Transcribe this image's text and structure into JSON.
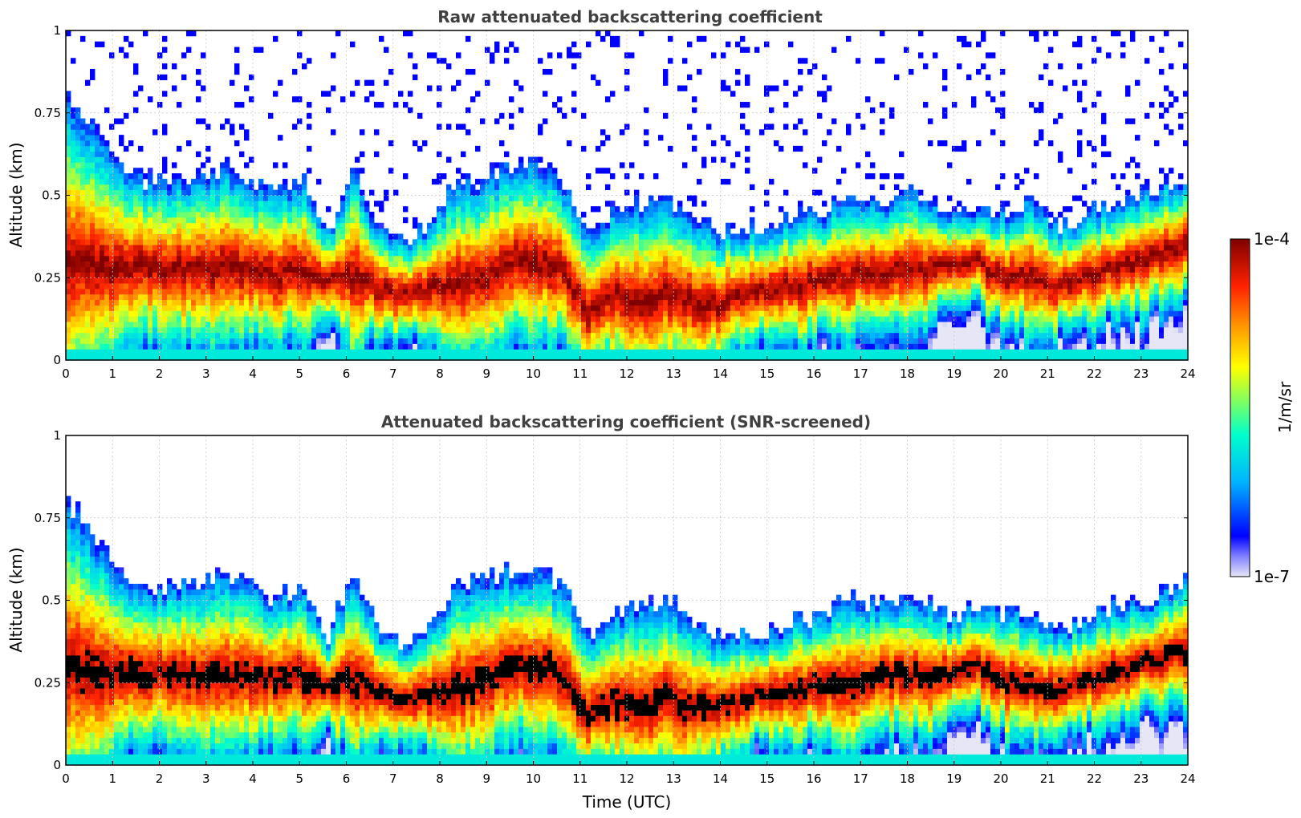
{
  "chart_data": [
    {
      "type": "heatmap",
      "title": "Raw attenuated backscattering coefficient",
      "xlabel": "",
      "ylabel": "Altitude (km)",
      "xlim": [
        0,
        24
      ],
      "ylim": [
        0,
        1
      ],
      "xticks": [
        0,
        1,
        2,
        3,
        4,
        5,
        6,
        7,
        8,
        9,
        10,
        11,
        12,
        13,
        14,
        15,
        16,
        17,
        18,
        19,
        20,
        21,
        22,
        23,
        24
      ],
      "yticks": [
        {
          "value": 0,
          "label": "0"
        },
        {
          "value": 0.25,
          "label": "0.25"
        },
        {
          "value": 0.5,
          "label": "0.5"
        },
        {
          "value": 0.75,
          "label": "0.75"
        },
        {
          "value": 1,
          "label": "1"
        }
      ],
      "grid": true,
      "screened": false,
      "layer_top_km": [
        0.8,
        0.7,
        0.58,
        0.55,
        0.55,
        0.55,
        0.6,
        0.55,
        0.5,
        0.55,
        0.4,
        0.58,
        0.4,
        0.35,
        0.42,
        0.55,
        0.55,
        0.6,
        0.6,
        0.55,
        0.4,
        0.45,
        0.48,
        0.5,
        0.45,
        0.4,
        0.4,
        0.4,
        0.45,
        0.45,
        0.5,
        0.5,
        0.5,
        0.5,
        0.45,
        0.48,
        0.45,
        0.48,
        0.4,
        0.45,
        0.48,
        0.5,
        0.52,
        0.55
      ],
      "layer_center_km": [
        0.3,
        0.28,
        0.28,
        0.28,
        0.28,
        0.27,
        0.28,
        0.27,
        0.26,
        0.27,
        0.24,
        0.26,
        0.22,
        0.2,
        0.22,
        0.23,
        0.25,
        0.3,
        0.3,
        0.28,
        0.15,
        0.2,
        0.18,
        0.2,
        0.18,
        0.17,
        0.2,
        0.22,
        0.22,
        0.25,
        0.25,
        0.27,
        0.27,
        0.27,
        0.28,
        0.3,
        0.25,
        0.25,
        0.22,
        0.25,
        0.28,
        0.3,
        0.32,
        0.35
      ]
    },
    {
      "type": "heatmap",
      "title": "Attenuated backscattering coefficient (SNR-screened)",
      "xlabel": "Time (UTC)",
      "ylabel": "Altitude (km)",
      "xlim": [
        0,
        24
      ],
      "ylim": [
        0,
        1
      ],
      "xticks": [
        0,
        1,
        2,
        3,
        4,
        5,
        6,
        7,
        8,
        9,
        10,
        11,
        12,
        13,
        14,
        15,
        16,
        17,
        18,
        19,
        20,
        21,
        22,
        23,
        24
      ],
      "yticks": [
        {
          "value": 0,
          "label": "0"
        },
        {
          "value": 0.25,
          "label": "0.25"
        },
        {
          "value": 0.5,
          "label": "0.5"
        },
        {
          "value": 0.75,
          "label": "0.75"
        },
        {
          "value": 1,
          "label": "1"
        }
      ],
      "grid": true,
      "screened": true,
      "layer_top_km": [
        0.8,
        0.7,
        0.58,
        0.55,
        0.55,
        0.55,
        0.6,
        0.55,
        0.5,
        0.55,
        0.4,
        0.58,
        0.4,
        0.35,
        0.42,
        0.55,
        0.55,
        0.6,
        0.6,
        0.55,
        0.4,
        0.45,
        0.48,
        0.5,
        0.45,
        0.4,
        0.4,
        0.4,
        0.45,
        0.45,
        0.5,
        0.5,
        0.5,
        0.5,
        0.45,
        0.48,
        0.45,
        0.48,
        0.4,
        0.45,
        0.48,
        0.5,
        0.52,
        0.55
      ],
      "layer_center_km": [
        0.3,
        0.28,
        0.28,
        0.28,
        0.28,
        0.27,
        0.28,
        0.27,
        0.26,
        0.27,
        0.24,
        0.26,
        0.22,
        0.2,
        0.22,
        0.23,
        0.25,
        0.3,
        0.3,
        0.28,
        0.15,
        0.2,
        0.18,
        0.2,
        0.18,
        0.17,
        0.2,
        0.22,
        0.22,
        0.25,
        0.25,
        0.27,
        0.27,
        0.27,
        0.28,
        0.3,
        0.25,
        0.25,
        0.22,
        0.25,
        0.28,
        0.3,
        0.32,
        0.35
      ]
    }
  ],
  "colorbar": {
    "scale": "log",
    "max_label": "1e-4",
    "min_label": "1e-7",
    "unit_label": "1/m/sr",
    "colormap": [
      "#e6e6f6",
      "#0000ff",
      "#00c8ff",
      "#7fff7f",
      "#ffff00",
      "#ff6600",
      "#ff0000",
      "#7f0000"
    ]
  },
  "colors": {
    "screened_saturation": "#000000",
    "grid": "#c8c8c8",
    "title_text": "#404040"
  }
}
